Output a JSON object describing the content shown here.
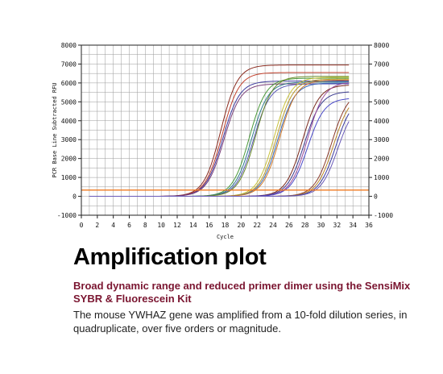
{
  "chart_data": {
    "type": "line",
    "xlabel": "Cycle",
    "ylabel": "PCR Base Line Subtracted RFU",
    "xlim": [
      0,
      36
    ],
    "ylim": [
      -1000,
      8000
    ],
    "x_ticks": [
      0,
      2,
      4,
      6,
      8,
      10,
      12,
      14,
      16,
      18,
      20,
      22,
      24,
      26,
      28,
      30,
      32,
      34,
      36
    ],
    "y_ticks": [
      -1000,
      0,
      1000,
      2000,
      3000,
      4000,
      5000,
      6000,
      7000,
      8000
    ],
    "right_axis": true,
    "grid": true,
    "threshold": 330,
    "x_range": [
      1,
      33.5
    ],
    "groups": [
      {
        "ct": 14.3,
        "curves": [
          {
            "plateau": 6950,
            "shift": 0.0,
            "color": "#8a2a1e"
          },
          {
            "plateau": 6550,
            "shift": 0.25,
            "color": "#c2422e"
          },
          {
            "plateau": 6100,
            "shift": 0.4,
            "color": "#3d3a9e"
          },
          {
            "plateau": 5950,
            "shift": 0.55,
            "color": "#7a3f7a"
          }
        ]
      },
      {
        "ct": 18.0,
        "curves": [
          {
            "plateau": 6250,
            "shift": 0.0,
            "color": "#4a9a3a"
          },
          {
            "plateau": 6050,
            "shift": 0.3,
            "color": "#2d7c8a"
          },
          {
            "plateau": 5950,
            "shift": 0.55,
            "color": "#5a5ab8"
          },
          {
            "plateau": 6350,
            "shift": 0.75,
            "color": "#6a8a2a"
          }
        ]
      },
      {
        "ct": 21.1,
        "curves": [
          {
            "plateau": 6300,
            "shift": 0.0,
            "color": "#c8c23a"
          },
          {
            "plateau": 6200,
            "shift": 0.3,
            "color": "#b89a2a"
          },
          {
            "plateau": 6000,
            "shift": 0.5,
            "color": "#3a6ab8"
          },
          {
            "plateau": 6150,
            "shift": 0.7,
            "color": "#d07a2a"
          }
        ]
      },
      {
        "ct": 24.7,
        "curves": [
          {
            "plateau": 5900,
            "shift": 0.0,
            "color": "#7a2a1e"
          },
          {
            "plateau": 5550,
            "shift": 0.3,
            "color": "#3a3a8e"
          },
          {
            "plateau": 6050,
            "shift": 0.6,
            "color": "#9a4a9a"
          },
          {
            "plateau": 5200,
            "shift": 0.8,
            "color": "#4a4ac8"
          }
        ]
      },
      {
        "ct": 28.4,
        "curves": [
          {
            "plateau": 5600,
            "shift": 0.0,
            "color": "#8a3a2a"
          },
          {
            "plateau": 5450,
            "shift": 0.3,
            "color": "#b8862a"
          },
          {
            "plateau": 5300,
            "shift": 0.6,
            "color": "#3a3a9e"
          },
          {
            "plateau": 5000,
            "shift": 0.9,
            "color": "#6a5ab8"
          }
        ]
      }
    ]
  },
  "colors": {
    "threshold": "#f07a20",
    "grid": "#9a9a9a",
    "heading": "#000000",
    "subheading": "#7a1530"
  },
  "caption": {
    "title": "Amplification plot",
    "subtitle": "Broad dynamic range and reduced primer dimer using the SensiMix SYBR & Fluorescein Kit",
    "body": "The mouse YWHAZ gene was amplified from a 10-fold dilution series, in quadruplicate, over five orders or magnitude."
  }
}
